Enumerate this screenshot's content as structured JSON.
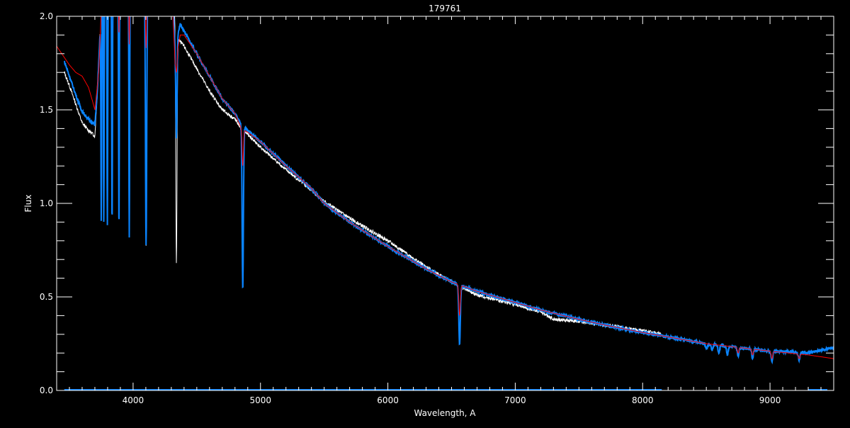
{
  "chart_data": {
    "type": "line",
    "title": "179761",
    "xlabel": "Wavelength, A",
    "ylabel": "Flux",
    "xlim": [
      3400,
      9500
    ],
    "ylim": [
      0.0,
      2.0
    ],
    "xticks": [
      4000,
      5000,
      6000,
      7000,
      8000,
      9000
    ],
    "xtick_labels": [
      "4000",
      "5000",
      "6000",
      "7000",
      "8000",
      "9000"
    ],
    "yticks": [
      0.0,
      0.5,
      1.0,
      1.5,
      2.0
    ],
    "ytick_labels": [
      "0.0",
      "0.5",
      "1.0",
      "1.5",
      "2.0"
    ],
    "x_minor_step": 100,
    "y_minor_step": 0.1,
    "grid": false,
    "colors": {
      "background": "#000000",
      "axes": "#ffffff",
      "white_series": "#ffffff",
      "blue_series": "#0a84ff",
      "red_series": "#ff0000"
    },
    "series": [
      {
        "color": "#ffffff",
        "x": [
          3460,
          3500,
          3550,
          3600,
          3650,
          3700,
          3720,
          3760,
          4300,
          4350,
          4400,
          4500,
          4600,
          4700,
          4800,
          4850,
          4900,
          5000,
          5200,
          5400,
          5500,
          5700,
          6000,
          6300,
          6500,
          6700,
          7000,
          7200,
          7300,
          7500,
          7700,
          8000,
          8150
        ],
        "y": [
          1.7,
          1.63,
          1.53,
          1.43,
          1.39,
          1.36,
          1.6,
          2.2,
          2.2,
          1.88,
          1.84,
          1.72,
          1.6,
          1.5,
          1.45,
          1.4,
          1.37,
          1.3,
          1.18,
          1.07,
          1.01,
          0.92,
          0.8,
          0.66,
          0.58,
          0.51,
          0.46,
          0.42,
          0.38,
          0.37,
          0.35,
          0.32,
          0.3
        ],
        "lines": [
          [
            3750,
            0.95
          ],
          [
            3770,
            0.93
          ],
          [
            3798,
            0.9
          ],
          [
            3835,
            0.88
          ],
          [
            3889,
            0.86
          ],
          [
            3970,
            0.84
          ],
          [
            4102,
            0.78
          ],
          [
            4340,
            0.68
          ],
          [
            4861,
            0.55
          ],
          [
            6563,
            0.3
          ]
        ]
      },
      {
        "color": "#0a84ff",
        "x": [
          3460,
          3500,
          3550,
          3600,
          3650,
          3700,
          3720,
          3760,
          4300,
          4330,
          4370,
          4400,
          4500,
          4600,
          4700,
          4800,
          4850,
          4900,
          5000,
          5200,
          5400,
          5500,
          5700,
          6000,
          6300,
          6500,
          6700,
          7000,
          7200,
          7500,
          7700,
          8000,
          8500,
          9000,
          9300,
          9500
        ],
        "y": [
          1.76,
          1.68,
          1.58,
          1.49,
          1.45,
          1.42,
          1.6,
          2.2,
          2.2,
          1.85,
          1.96,
          1.92,
          1.8,
          1.68,
          1.56,
          1.48,
          1.42,
          1.39,
          1.33,
          1.2,
          1.08,
          1.0,
          0.9,
          0.77,
          0.65,
          0.58,
          0.53,
          0.47,
          0.43,
          0.38,
          0.35,
          0.31,
          0.25,
          0.21,
          0.2,
          0.23
        ],
        "lines": [
          [
            3750,
            0.9
          ],
          [
            3770,
            0.9
          ],
          [
            3798,
            0.88
          ],
          [
            3835,
            0.87
          ],
          [
            3889,
            0.85
          ],
          [
            3970,
            0.82
          ],
          [
            4102,
            0.77
          ],
          [
            4340,
            1.35
          ],
          [
            4861,
            0.53
          ],
          [
            6563,
            0.25
          ],
          [
            8502,
            0.22
          ],
          [
            8545,
            0.21
          ],
          [
            8598,
            0.2
          ],
          [
            8665,
            0.19
          ],
          [
            8750,
            0.18
          ],
          [
            8863,
            0.17
          ],
          [
            9015,
            0.15
          ],
          [
            9229,
            0.16
          ]
        ]
      },
      {
        "color": "#ff0000",
        "x": [
          3400,
          3450,
          3500,
          3550,
          3600,
          3650,
          3680,
          3700,
          3730,
          3760,
          4300,
          4330,
          4370,
          4400,
          4500,
          4600,
          4700,
          4800,
          4850,
          4900,
          5000,
          5200,
          5400,
          5500,
          5700,
          6000,
          6300,
          6500,
          6700,
          7000,
          7200,
          7500,
          7700,
          8000,
          8500,
          9000,
          9300,
          9500
        ],
        "y": [
          1.84,
          1.79,
          1.74,
          1.7,
          1.68,
          1.62,
          1.55,
          1.5,
          1.7,
          2.2,
          2.2,
          1.75,
          1.9,
          1.9,
          1.8,
          1.68,
          1.56,
          1.48,
          1.4,
          1.38,
          1.33,
          1.2,
          1.08,
          1.0,
          0.9,
          0.77,
          0.65,
          0.58,
          0.53,
          0.47,
          0.43,
          0.38,
          0.35,
          0.31,
          0.25,
          0.21,
          0.19,
          0.17
        ],
        "lines": [
          [
            3889,
            1.9
          ],
          [
            3970,
            1.85
          ],
          [
            4102,
            1.83
          ],
          [
            4340,
            1.7
          ],
          [
            4861,
            1.2
          ],
          [
            6563,
            0.4
          ],
          [
            8750,
            0.2
          ],
          [
            8863,
            0.19
          ],
          [
            9015,
            0.17
          ],
          [
            9229,
            0.17
          ]
        ]
      }
    ]
  }
}
